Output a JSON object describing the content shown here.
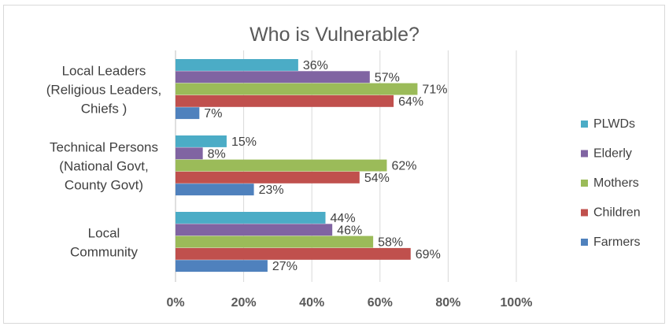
{
  "chart_data": {
    "type": "bar",
    "orientation": "horizontal",
    "title": "Who is Vulnerable?",
    "categories": [
      [
        "Local Leaders",
        "(Religious Leaders,",
        "Chiefs )"
      ],
      [
        "Technical Persons",
        "(National Govt,",
        "County Govt)"
      ],
      [
        "Local",
        "Community"
      ]
    ],
    "series": [
      {
        "name": "PLWDs",
        "color": "#4BACC6",
        "values": [
          36,
          15,
          44
        ]
      },
      {
        "name": "Elderly",
        "color": "#8064A2",
        "values": [
          57,
          8,
          46
        ]
      },
      {
        "name": "Mothers",
        "color": "#9BBB59",
        "values": [
          71,
          62,
          58
        ]
      },
      {
        "name": "Children",
        "color": "#C0504D",
        "values": [
          64,
          54,
          69
        ]
      },
      {
        "name": "Farmers",
        "color": "#4F81BD",
        "values": [
          7,
          23,
          27
        ]
      }
    ],
    "value_suffix": "%",
    "xlim": [
      0,
      100
    ],
    "xticks": [
      0,
      20,
      40,
      60,
      80,
      100
    ],
    "xtick_labels": [
      "0%",
      "20%",
      "40%",
      "60%",
      "80%",
      "100%"
    ],
    "grid": "vertical",
    "legend_position": "right"
  }
}
